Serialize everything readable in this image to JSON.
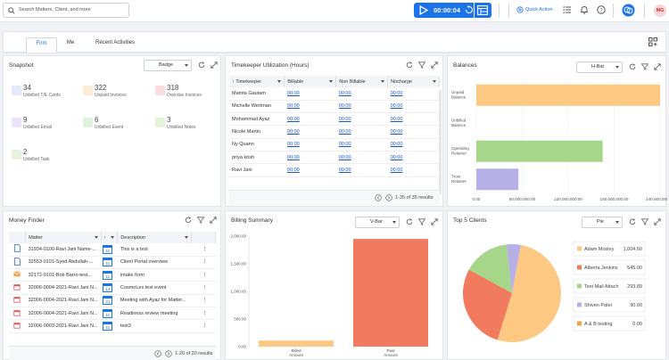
{
  "topbar": {
    "search_placeholder": "Search Matters, Client, and more",
    "timer_value": "00:00:04",
    "quick_action": "Quick Action",
    "avatar_initials": "MG"
  },
  "tabs": [
    {
      "label": "Firm",
      "active": true
    },
    {
      "label": "Me",
      "active": false
    },
    {
      "label": "Recent Activities",
      "active": false
    }
  ],
  "snapshot": {
    "title": "Snapshot",
    "view": "Badge",
    "stats": [
      {
        "value": "34",
        "label": "Unbilled T/E Cards",
        "color": "#5b7fd6"
      },
      {
        "value": "322",
        "label": "Unpaid Invoices",
        "color": "#f0a14a"
      },
      {
        "value": "318",
        "label": "Overdue Invoices",
        "color": "#e05555"
      },
      {
        "value": "9",
        "label": "Unbilled Email",
        "color": "#9b7fd6"
      },
      {
        "value": "6",
        "label": "Unbilled Event",
        "color": "#5cb85c"
      },
      {
        "value": "3",
        "label": "Unbilled Notes",
        "color": "#6bb86b"
      },
      {
        "value": "2",
        "label": "Unbilled Task",
        "color": "#7dbf6a"
      }
    ]
  },
  "timekeeper": {
    "title": "Timekeeper Utilization (Hours)",
    "columns": [
      "Timekeeper",
      "Billable",
      "Non Billable",
      "Nocharge"
    ],
    "rows": [
      {
        "name": "Mamta Gautam",
        "billable": "00:00",
        "non_billable": "00:00",
        "nocharge": "00:00"
      },
      {
        "name": "Michelle Wertman",
        "billable": "00:00",
        "non_billable": "00:00",
        "nocharge": "00:00"
      },
      {
        "name": "Mohammad Ayaz",
        "billable": "00:00",
        "non_billable": "00:00",
        "nocharge": "00:00"
      },
      {
        "name": "Nicole Martin",
        "billable": "00:00",
        "non_billable": "00:00",
        "nocharge": "00:00"
      },
      {
        "name": "Ny Quann",
        "billable": "00:00",
        "non_billable": "00:00",
        "nocharge": "00:00"
      },
      {
        "name": "priya krish",
        "billable": "00:00",
        "non_billable": "00:00",
        "nocharge": "00:00"
      },
      {
        "name": "Ravi Jani",
        "billable": "00:00",
        "non_billable": "00:00",
        "nocharge": "00:00"
      }
    ],
    "pager": "1-35 of 35 results"
  },
  "balances": {
    "title": "Balances",
    "view": "H-Bar"
  },
  "money_finder": {
    "title": "Money Finder",
    "columns": [
      "Matter",
      "Description"
    ],
    "rows": [
      {
        "icon": "doc",
        "matter": "31934-0100-Ravi Jani Name-...",
        "date": "11",
        "desc": "This is a test"
      },
      {
        "icon": "doc",
        "matter": "32553-0101-Syed Abdullah-...",
        "date": "11",
        "desc": "Client Portal overview"
      },
      {
        "icon": "mail",
        "matter": "32172-0101-Bob Barro-test...",
        "date": "11",
        "desc": "intake form"
      },
      {
        "icon": "cal",
        "matter": "32006-0004-2021-Ravi Jani N...",
        "date": "14",
        "desc": "CosmoLex test event"
      },
      {
        "icon": "cal",
        "matter": "32006-0004-2021-Ravi Jani N...",
        "date": "21",
        "desc": "Meeting with Ayaz for Matter..."
      },
      {
        "icon": "cal",
        "matter": "32006-0004-2021-Ravi Jani N...",
        "date": "11",
        "desc": "Readiness review meeting"
      },
      {
        "icon": "cal",
        "matter": "32006-0003-2021-Ravi Jani N...",
        "date": "11",
        "desc": "test3"
      }
    ],
    "pager": "1-20 of 20 results"
  },
  "billing_summary": {
    "title": "Billing Summary",
    "view": "V-Bar"
  },
  "top_clients": {
    "title": "Top 5 Clients",
    "view": "Pie"
  },
  "chart_data": [
    {
      "type": "bar",
      "orientation": "horizontal",
      "categories": [
        "Unpaid Balance",
        "Unbilled Balance",
        "Operating Retainer",
        "Trust Retainer"
      ],
      "values": [
        240000000,
        0,
        165000000,
        55000000
      ],
      "colors": [
        "#fdc982",
        "#cccccc",
        "#a5d68a",
        "#b6b0e6"
      ],
      "tick_labels": [
        "0.00",
        "60,000,000.00",
        "120,000,000.00",
        "180,000,000.00",
        "240,000,000.00"
      ],
      "xlim": [
        0,
        240000000
      ]
    },
    {
      "type": "bar",
      "orientation": "vertical",
      "categories": [
        "Billed Amount",
        "Paid Amount"
      ],
      "values": [
        110,
        1950
      ],
      "colors": [
        "#fdc982",
        "#f27a5e"
      ],
      "tick_labels": [
        "0.00",
        "500.00",
        "1,000.00",
        "1,500.00",
        "2,000.00"
      ],
      "ylim": [
        0,
        2000
      ]
    },
    {
      "type": "pie",
      "labels": [
        "Adam Mosley",
        "Alberta Jenkins",
        "Test Mail Attach",
        "Shiven Patel",
        "A & B testing"
      ],
      "values": [
        1004.5,
        545.0,
        293.89,
        90.0,
        0.0
      ],
      "value_labels": [
        "1,004.50",
        "545.00",
        "293.89",
        "90.00",
        "0.00"
      ],
      "colors": [
        "#fdc982",
        "#f27a5e",
        "#a5d68a",
        "#b6b0e6",
        "#f0a14a"
      ]
    }
  ]
}
